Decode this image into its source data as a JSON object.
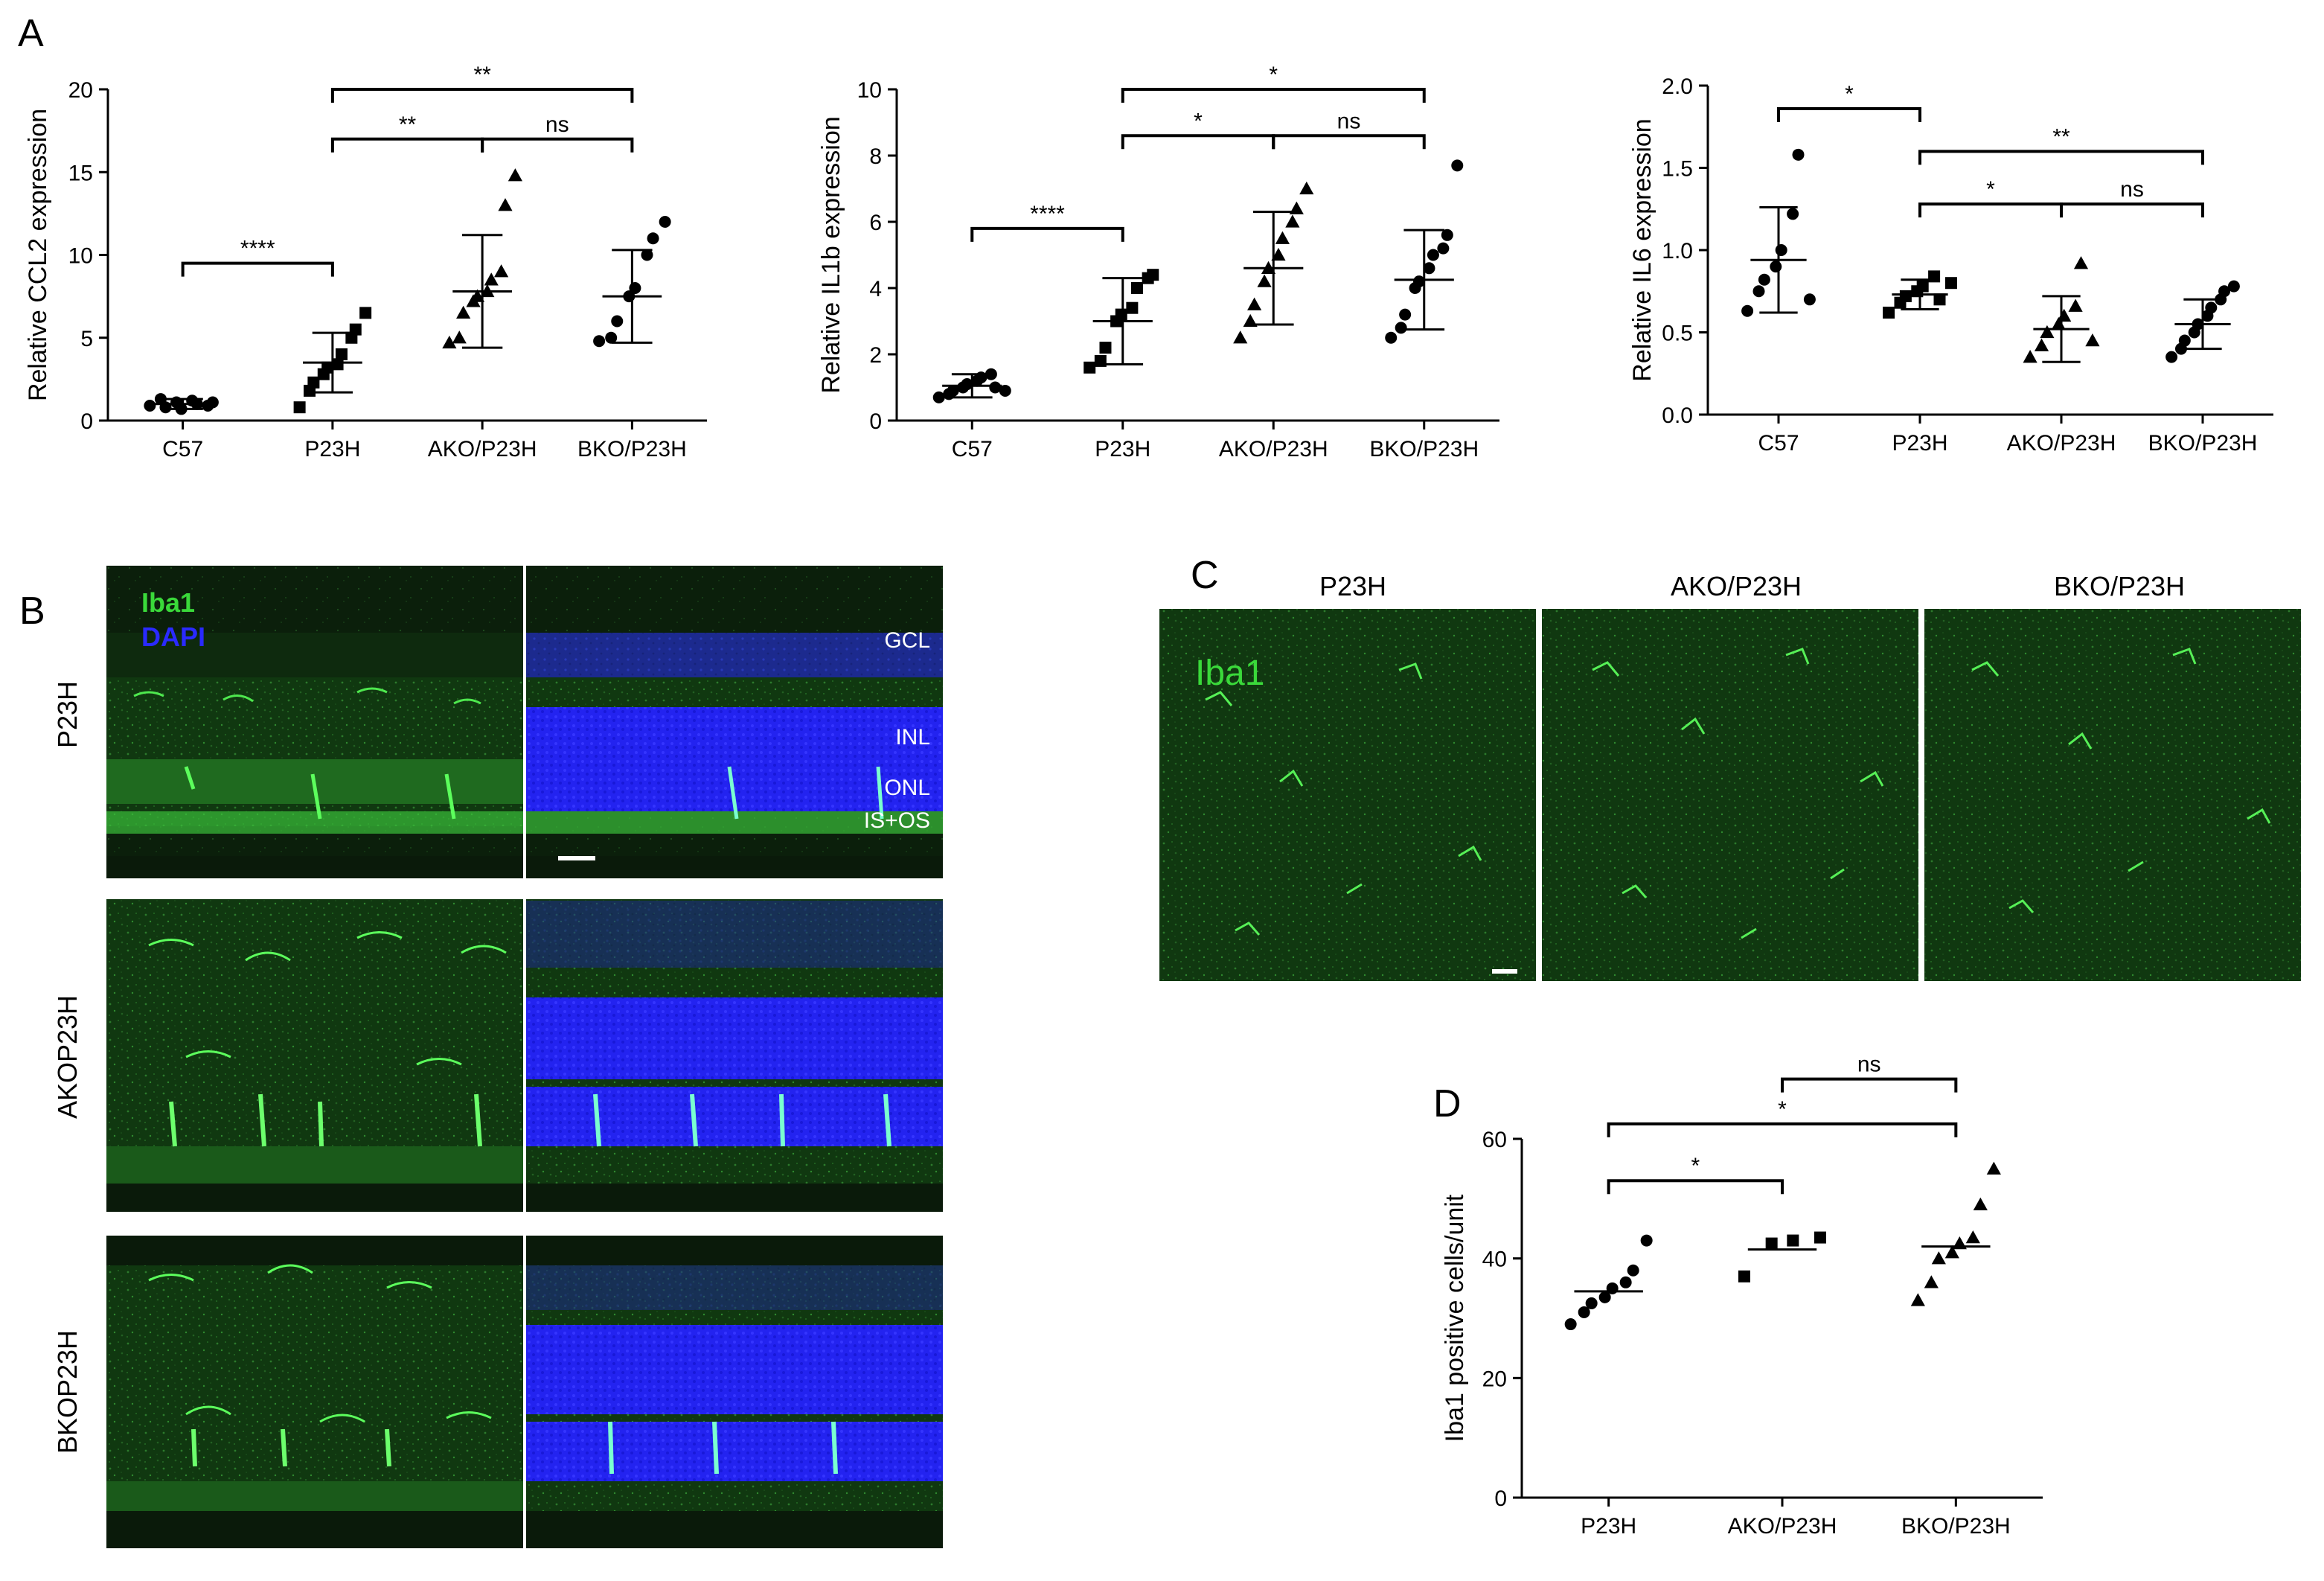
{
  "panels": {
    "a": "A",
    "b": "B",
    "c": "C",
    "d": "D"
  },
  "chart_data": [
    {
      "id": "ccl2",
      "type": "scatter",
      "title": "",
      "xlabel": "",
      "ylabel": "Relative CCL2 expression",
      "categories": [
        "C57",
        "P23H",
        "AKO/P23H",
        "BKO/P23H"
      ],
      "ylim": [
        0,
        20
      ],
      "yticks": [
        0,
        5,
        10,
        15,
        20
      ],
      "markers": [
        "circle",
        "square",
        "triangle",
        "circle"
      ],
      "summary": "mean_sd",
      "mean": [
        1.0,
        3.5,
        7.8,
        7.5
      ],
      "sd": [
        0.3,
        1.8,
        3.4,
        2.8
      ],
      "points": [
        [
          0.9,
          1.3,
          0.8,
          1.1,
          0.7,
          1.2,
          1.0,
          0.9,
          1.1
        ],
        [
          0.8,
          1.8,
          2.3,
          2.8,
          3.2,
          3.4,
          4.0,
          5.0,
          5.5,
          6.5
        ],
        [
          4.7,
          5.0,
          6.5,
          7.2,
          7.5,
          7.8,
          8.5,
          9.0,
          13.0,
          14.8
        ],
        [
          4.8,
          5.0,
          6.0,
          7.5,
          8.0,
          10.0,
          11.0,
          12.0
        ]
      ],
      "comparisons": [
        {
          "from": 0,
          "to": 1,
          "label": "****",
          "y": 9.5
        },
        {
          "from": 1,
          "to": 2,
          "label": "**",
          "y": 17.0
        },
        {
          "from": 2,
          "to": 3,
          "label": "ns",
          "y": 17.0
        },
        {
          "from": 1,
          "to": 3,
          "label": "**",
          "y": 20.0
        }
      ]
    },
    {
      "id": "il1b",
      "type": "scatter",
      "title": "",
      "xlabel": "",
      "ylabel": "Relative IL1b expression",
      "categories": [
        "C57",
        "P23H",
        "AKO/P23H",
        "BKO/P23H"
      ],
      "ylim": [
        0,
        10
      ],
      "yticks": [
        0,
        2,
        4,
        6,
        8,
        10
      ],
      "markers": [
        "circle",
        "square",
        "triangle",
        "circle"
      ],
      "summary": "mean_sd",
      "mean": [
        1.05,
        3.0,
        4.6,
        4.25
      ],
      "sd": [
        0.35,
        1.3,
        1.7,
        1.5
      ],
      "points": [
        [
          0.7,
          0.8,
          0.9,
          1.0,
          1.1,
          1.2,
          1.3,
          1.4,
          1.0,
          0.9
        ],
        [
          1.6,
          1.8,
          2.2,
          3.0,
          3.2,
          3.4,
          4.0,
          4.3,
          4.4
        ],
        [
          2.5,
          3.0,
          3.5,
          4.2,
          4.6,
          5.0,
          5.5,
          6.0,
          6.4,
          7.0
        ],
        [
          2.5,
          2.8,
          3.2,
          4.0,
          4.2,
          4.6,
          5.0,
          5.2,
          5.6,
          7.7
        ]
      ],
      "comparisons": [
        {
          "from": 0,
          "to": 1,
          "label": "****",
          "y": 5.8
        },
        {
          "from": 1,
          "to": 2,
          "label": "*",
          "y": 8.6
        },
        {
          "from": 2,
          "to": 3,
          "label": "ns",
          "y": 8.6
        },
        {
          "from": 1,
          "to": 3,
          "label": "*",
          "y": 10.0
        }
      ]
    },
    {
      "id": "il6",
      "type": "scatter",
      "title": "",
      "xlabel": "",
      "ylabel": "Relative IL6 expression",
      "categories": [
        "C57",
        "P23H",
        "AKO/P23H",
        "BKO/P23H"
      ],
      "ylim": [
        0,
        2.0
      ],
      "yticks": [
        0.0,
        0.5,
        1.0,
        1.5,
        2.0
      ],
      "yticklabels": [
        "0.0",
        "0.5",
        "1.0",
        "1.5",
        "2.0"
      ],
      "markers": [
        "circle",
        "square",
        "triangle",
        "circle"
      ],
      "summary": "mean_sd",
      "mean": [
        0.94,
        0.73,
        0.52,
        0.55
      ],
      "sd": [
        0.32,
        0.09,
        0.2,
        0.15
      ],
      "points": [
        [
          0.63,
          0.75,
          0.82,
          0.9,
          1.0,
          1.22,
          1.58,
          0.7
        ],
        [
          0.62,
          0.68,
          0.72,
          0.75,
          0.78,
          0.84,
          0.7,
          0.8
        ],
        [
          0.35,
          0.42,
          0.5,
          0.55,
          0.6,
          0.66,
          0.92,
          0.45
        ],
        [
          0.35,
          0.4,
          0.45,
          0.5,
          0.55,
          0.6,
          0.65,
          0.7,
          0.75,
          0.78
        ]
      ],
      "comparisons": [
        {
          "from": 0,
          "to": 1,
          "label": "*",
          "y": 1.86
        },
        {
          "from": 1,
          "to": 2,
          "label": "*",
          "y": 1.28
        },
        {
          "from": 2,
          "to": 3,
          "label": "ns",
          "y": 1.28
        },
        {
          "from": 1,
          "to": 3,
          "label": "**",
          "y": 1.6
        }
      ]
    },
    {
      "id": "iba1count",
      "type": "scatter",
      "title": "",
      "xlabel": "",
      "ylabel": "Iba1 positive cells/unit",
      "categories": [
        "P23H",
        "AKO/P23H",
        "BKO/P23H"
      ],
      "ylim": [
        0,
        60
      ],
      "yticks": [
        0,
        20,
        40,
        60
      ],
      "markers": [
        "circle",
        "square",
        "triangle"
      ],
      "summary": "median_line",
      "mean": [
        34.5,
        41.5,
        42.0
      ],
      "points": [
        [
          29.0,
          31.0,
          32.5,
          33.5,
          35.0,
          36.0,
          38.0,
          43.0
        ],
        [
          37.0,
          42.5,
          43.0,
          43.5
        ],
        [
          33.0,
          36.0,
          40.0,
          41.0,
          42.5,
          43.5,
          49.0,
          55.0
        ]
      ],
      "comparisons": [
        {
          "from": 0,
          "to": 1,
          "label": "*",
          "y": 53.0
        },
        {
          "from": 0,
          "to": 2,
          "label": "*",
          "y": 62.5
        },
        {
          "from": 1,
          "to": 2,
          "label": "ns",
          "y": 70.0
        }
      ]
    }
  ],
  "micrographs_b": {
    "rows": [
      "P23H",
      "AKOP23H",
      "BKOP23H"
    ],
    "stain_iba1": "Iba1",
    "stain_dapi": "DAPI",
    "layers": [
      "GCL",
      "INL",
      "ONL",
      "IS+OS"
    ],
    "colors": {
      "iba1": "#3ad93a",
      "dapi": "#2a2aff"
    }
  },
  "micrographs_c": {
    "columns": [
      "P23H",
      "AKO/P23H",
      "BKO/P23H"
    ],
    "stain": "Iba1"
  }
}
